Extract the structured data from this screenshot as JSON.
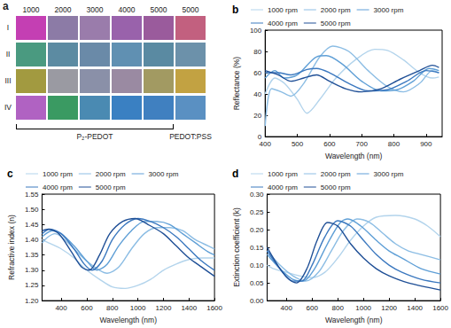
{
  "photo_grid": {
    "title": "a",
    "columns": [
      "1000",
      "2000",
      "3000",
      "4000",
      "5000",
      "5000"
    ],
    "rows": [
      "I",
      "II",
      "III",
      "IV"
    ],
    "colors": [
      [
        "#c43fb3",
        "#8c7ba6",
        "#9a7cab",
        "#9962ab",
        "#9a5b9c",
        "#c2607f"
      ],
      [
        "#4a9a80",
        "#5c8ba2",
        "#6a8aa8",
        "#6090b2",
        "#5a8aa2",
        "#6c91aa"
      ],
      [
        "#a29a40",
        "#9a9aa2",
        "#8a90a8",
        "#9a8aa2",
        "#a29a62",
        "#c2a242"
      ],
      [
        "#b062c2",
        "#3a9a62",
        "#4a8ab2",
        "#3a80c2",
        "#4080c0",
        "#5a90c2"
      ]
    ],
    "groups": [
      {
        "label": "P₂-PEDOT",
        "span": 5
      },
      {
        "label": "PEDOT:PSS",
        "span": 1
      }
    ]
  },
  "chart_data": [
    {
      "type": "line",
      "title": "b",
      "x_label": "Wavelength (nm)",
      "y_label": "Reflectance (%)",
      "xlim": [
        400,
        950
      ],
      "xticks": [
        400,
        500,
        600,
        700,
        800,
        900
      ],
      "ylim": [
        0,
        100
      ],
      "yticks": [
        0,
        20,
        40,
        60,
        80,
        100
      ],
      "grid": false,
      "legend": "top",
      "series": [
        {
          "name": "1000 rpm",
          "color": "#b3d4ec",
          "x": [
            400,
            430,
            460,
            500,
            530,
            570,
            620,
            680,
            740,
            780,
            830,
            880,
            920,
            940
          ],
          "values": [
            40,
            55,
            50,
            35,
            22,
            35,
            55,
            72,
            82,
            81,
            72,
            60,
            55,
            56
          ]
        },
        {
          "name": "2000 rpm",
          "color": "#8cbde4",
          "x": [
            400,
            420,
            450,
            480,
            520,
            570,
            610,
            660,
            720,
            780,
            830,
            880,
            920,
            940
          ],
          "values": [
            10,
            45,
            42,
            38,
            50,
            75,
            85,
            80,
            62,
            47,
            42,
            50,
            62,
            60
          ]
        },
        {
          "name": "3000 rpm",
          "color": "#5f9fd6",
          "x": [
            400,
            430,
            460,
            500,
            560,
            590,
            640,
            700,
            760,
            810,
            860,
            910,
            940
          ],
          "values": [
            55,
            62,
            55,
            58,
            75,
            76,
            68,
            52,
            43,
            44,
            52,
            64,
            62
          ]
        },
        {
          "name": "4000 rpm",
          "color": "#3b78bf",
          "x": [
            400,
            440,
            480,
            530,
            560,
            600,
            660,
            720,
            780,
            840,
            900,
            940
          ],
          "values": [
            60,
            60,
            58,
            63,
            64,
            60,
            50,
            43,
            44,
            52,
            62,
            60
          ]
        },
        {
          "name": "5000 rpm",
          "color": "#1f4f96",
          "x": [
            400,
            440,
            480,
            520,
            560,
            600,
            650,
            700,
            760,
            820,
            880,
            920,
            940
          ],
          "values": [
            62,
            58,
            52,
            55,
            58,
            52,
            45,
            42,
            45,
            54,
            62,
            67,
            65
          ]
        }
      ]
    },
    {
      "type": "line",
      "title": "c",
      "x_label": "Wavelength (nm)",
      "y_label": "Refractive index (n)",
      "xlim": [
        250,
        1600
      ],
      "xticks": [
        400,
        600,
        800,
        1000,
        1200,
        1400,
        1600
      ],
      "ylim": [
        1.2,
        1.55
      ],
      "yticks": [
        {
          "value": 1.2,
          "label": "1.20"
        },
        {
          "value": 1.25,
          "label": "1.25"
        },
        {
          "value": 1.3,
          "label": "1.30"
        },
        {
          "value": 1.35,
          "label": "1.35"
        },
        {
          "value": 1.4,
          "label": "1.40"
        },
        {
          "value": 1.45,
          "label": "1.45"
        },
        {
          "value": 1.5,
          "label": "1.50"
        },
        {
          "value": 1.55,
          "label": "1.55"
        }
      ],
      "grid": false,
      "legend": "top",
      "series": [
        {
          "name": "1000 rpm",
          "color": "#b3d4ec",
          "x": [
            250,
            300,
            400,
            500,
            600,
            700,
            800,
            900,
            1000,
            1100,
            1200,
            1300,
            1400,
            1500,
            1600
          ],
          "values": [
            1.4,
            1.39,
            1.37,
            1.34,
            1.3,
            1.27,
            1.245,
            1.24,
            1.25,
            1.27,
            1.3,
            1.32,
            1.335,
            1.34,
            1.34
          ]
        },
        {
          "name": "2000 rpm",
          "color": "#8cbde4",
          "x": [
            250,
            300,
            350,
            400,
            500,
            600,
            700,
            760,
            850,
            950,
            1050,
            1150,
            1250,
            1350,
            1450,
            1550,
            1600
          ],
          "values": [
            1.39,
            1.41,
            1.42,
            1.41,
            1.37,
            1.33,
            1.3,
            1.29,
            1.31,
            1.37,
            1.42,
            1.44,
            1.44,
            1.43,
            1.4,
            1.38,
            1.37
          ]
        },
        {
          "name": "3000 rpm",
          "color": "#5f9fd6",
          "x": [
            250,
            330,
            400,
            500,
            600,
            680,
            760,
            850,
            950,
            1050,
            1150,
            1250,
            1350,
            1450,
            1550,
            1600
          ],
          "values": [
            1.41,
            1.43,
            1.42,
            1.38,
            1.33,
            1.3,
            1.32,
            1.38,
            1.43,
            1.46,
            1.46,
            1.45,
            1.42,
            1.39,
            1.36,
            1.35
          ]
        },
        {
          "name": "4000 rpm",
          "color": "#3b78bf",
          "x": [
            250,
            310,
            400,
            500,
            580,
            640,
            720,
            800,
            900,
            1000,
            1100,
            1200,
            1300,
            1400,
            1500,
            1600
          ],
          "values": [
            1.42,
            1.435,
            1.42,
            1.37,
            1.32,
            1.3,
            1.33,
            1.4,
            1.45,
            1.47,
            1.46,
            1.44,
            1.41,
            1.37,
            1.33,
            1.3
          ]
        },
        {
          "name": "5000 rpm",
          "color": "#1f4f96",
          "x": [
            250,
            300,
            380,
            480,
            560,
            620,
            700,
            780,
            880,
            980,
            1080,
            1200,
            1300,
            1400,
            1500,
            1600
          ],
          "values": [
            1.43,
            1.435,
            1.42,
            1.36,
            1.31,
            1.3,
            1.35,
            1.42,
            1.46,
            1.47,
            1.45,
            1.42,
            1.38,
            1.34,
            1.31,
            1.28
          ]
        }
      ]
    },
    {
      "type": "line",
      "title": "d",
      "x_label": "Wavelength (nm)",
      "y_label": "Extinction coefficient (k)",
      "xlim": [
        250,
        1600
      ],
      "xticks": [
        400,
        600,
        800,
        1000,
        1200,
        1400,
        1600
      ],
      "ylim": [
        0,
        0.3
      ],
      "yticks": [
        {
          "value": 0,
          "label": "0.00"
        },
        {
          "value": 0.05,
          "label": "0.05"
        },
        {
          "value": 0.1,
          "label": "0.10"
        },
        {
          "value": 0.15,
          "label": "0.15"
        },
        {
          "value": 0.2,
          "label": "0.20"
        },
        {
          "value": 0.25,
          "label": "0.25"
        },
        {
          "value": 0.3,
          "label": "0.30"
        }
      ],
      "grid": false,
      "legend": "top",
      "series": [
        {
          "name": "1000 rpm",
          "color": "#b3d4ec",
          "x": [
            250,
            300,
            400,
            500,
            600,
            700,
            800,
            900,
            1000,
            1100,
            1250,
            1400,
            1500,
            1600
          ],
          "values": [
            0.1,
            0.09,
            0.08,
            0.07,
            0.065,
            0.08,
            0.12,
            0.17,
            0.21,
            0.235,
            0.24,
            0.23,
            0.21,
            0.18
          ]
        },
        {
          "name": "2000 rpm",
          "color": "#8cbde4",
          "x": [
            250,
            350,
            450,
            550,
            650,
            750,
            850,
            950,
            1050,
            1150,
            1250,
            1350,
            1450,
            1600
          ],
          "values": [
            0.14,
            0.1,
            0.07,
            0.055,
            0.08,
            0.14,
            0.2,
            0.23,
            0.22,
            0.19,
            0.16,
            0.14,
            0.13,
            0.115
          ]
        },
        {
          "name": "3000 rpm",
          "color": "#5f9fd6",
          "x": [
            250,
            350,
            450,
            530,
            620,
            720,
            820,
            880,
            980,
            1100,
            1200,
            1300,
            1450,
            1600
          ],
          "values": [
            0.13,
            0.09,
            0.06,
            0.055,
            0.09,
            0.16,
            0.22,
            0.23,
            0.21,
            0.17,
            0.14,
            0.12,
            0.09,
            0.075
          ]
        },
        {
          "name": "4000 rpm",
          "color": "#3b78bf",
          "x": [
            250,
            350,
            450,
            520,
            600,
            700,
            800,
            900,
            1000,
            1100,
            1200,
            1300,
            1450,
            1600
          ],
          "values": [
            0.14,
            0.09,
            0.055,
            0.055,
            0.1,
            0.18,
            0.225,
            0.21,
            0.17,
            0.13,
            0.1,
            0.08,
            0.06,
            0.05
          ]
        },
        {
          "name": "5000 rpm",
          "color": "#1f4f96",
          "x": [
            250,
            350,
            420,
            480,
            560,
            640,
            720,
            800,
            900,
            1000,
            1100,
            1200,
            1350,
            1600
          ],
          "values": [
            0.15,
            0.09,
            0.06,
            0.05,
            0.09,
            0.17,
            0.22,
            0.21,
            0.16,
            0.12,
            0.09,
            0.07,
            0.05,
            0.03
          ]
        }
      ]
    }
  ]
}
